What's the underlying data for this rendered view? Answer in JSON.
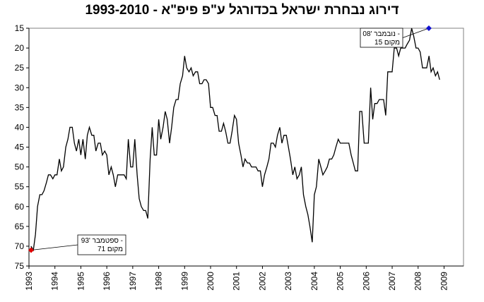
{
  "chart_data": {
    "type": "line",
    "title": "דירוג נבחרת ישראל בכדורגל ע\"פ פיפ\"א - 1993-2010",
    "xlabel": "",
    "ylabel": "",
    "y_inverted": true,
    "ylim": [
      15,
      75
    ],
    "y_ticks": [
      15,
      20,
      25,
      30,
      35,
      40,
      45,
      50,
      55,
      60,
      65,
      70,
      75
    ],
    "xlim": [
      1993.0,
      2009.75
    ],
    "x_tick_labels": [
      "1993",
      "1994",
      "1995",
      "1996",
      "1997",
      "1998",
      "1999",
      "2000",
      "2001",
      "2002",
      "2003",
      "2004",
      "2005",
      "2006",
      "2007",
      "2008",
      "2009"
    ],
    "grid": false,
    "legend": "none",
    "line_color": "#000000",
    "series": [
      {
        "points": [
          [
            1993.08,
            70
          ],
          [
            1993.17,
            71
          ],
          [
            1993.25,
            67
          ],
          [
            1993.33,
            60
          ],
          [
            1993.42,
            57
          ],
          [
            1993.5,
            57
          ],
          [
            1993.58,
            56
          ],
          [
            1993.67,
            54
          ],
          [
            1993.75,
            52
          ],
          [
            1993.83,
            52
          ],
          [
            1993.92,
            53
          ],
          [
            1994.0,
            52
          ],
          [
            1994.08,
            52
          ],
          [
            1994.17,
            48
          ],
          [
            1994.25,
            51
          ],
          [
            1994.33,
            50
          ],
          [
            1994.42,
            45
          ],
          [
            1994.5,
            43
          ],
          [
            1994.58,
            40
          ],
          [
            1994.67,
            40
          ],
          [
            1994.75,
            44
          ],
          [
            1994.83,
            46
          ],
          [
            1994.92,
            43
          ],
          [
            1995.0,
            47
          ],
          [
            1995.08,
            43
          ],
          [
            1995.17,
            48
          ],
          [
            1995.25,
            42
          ],
          [
            1995.33,
            40
          ],
          [
            1995.42,
            42
          ],
          [
            1995.5,
            42
          ],
          [
            1995.58,
            46
          ],
          [
            1995.67,
            44
          ],
          [
            1995.75,
            44
          ],
          [
            1995.83,
            47
          ],
          [
            1995.92,
            46
          ],
          [
            1996.0,
            47
          ],
          [
            1996.08,
            52
          ],
          [
            1996.17,
            50
          ],
          [
            1996.25,
            52
          ],
          [
            1996.33,
            55
          ],
          [
            1996.42,
            52
          ],
          [
            1996.5,
            52
          ],
          [
            1996.58,
            52
          ],
          [
            1996.67,
            52
          ],
          [
            1996.75,
            53
          ],
          [
            1996.83,
            43
          ],
          [
            1996.92,
            50
          ],
          [
            1997.0,
            50
          ],
          [
            1997.08,
            43
          ],
          [
            1997.17,
            52
          ],
          [
            1997.25,
            58
          ],
          [
            1997.33,
            60
          ],
          [
            1997.42,
            61
          ],
          [
            1997.5,
            61
          ],
          [
            1997.58,
            63
          ],
          [
            1997.67,
            48
          ],
          [
            1997.75,
            40
          ],
          [
            1997.83,
            47
          ],
          [
            1997.92,
            47
          ],
          [
            1998.0,
            38
          ],
          [
            1998.08,
            43
          ],
          [
            1998.17,
            40
          ],
          [
            1998.25,
            36
          ],
          [
            1998.33,
            38
          ],
          [
            1998.42,
            44
          ],
          [
            1998.5,
            40
          ],
          [
            1998.58,
            35
          ],
          [
            1998.67,
            33
          ],
          [
            1998.75,
            33
          ],
          [
            1998.83,
            29
          ],
          [
            1998.92,
            27
          ],
          [
            1999.0,
            22
          ],
          [
            1999.08,
            25
          ],
          [
            1999.17,
            26
          ],
          [
            1999.25,
            25
          ],
          [
            1999.33,
            27
          ],
          [
            1999.42,
            26
          ],
          [
            1999.5,
            26
          ],
          [
            1999.58,
            29
          ],
          [
            1999.67,
            29
          ],
          [
            1999.75,
            28
          ],
          [
            1999.83,
            28
          ],
          [
            1999.92,
            29
          ],
          [
            2000.0,
            35
          ],
          [
            2000.08,
            35
          ],
          [
            2000.17,
            37
          ],
          [
            2000.25,
            37
          ],
          [
            2000.33,
            41
          ],
          [
            2000.42,
            41
          ],
          [
            2000.5,
            39
          ],
          [
            2000.58,
            41
          ],
          [
            2000.67,
            44
          ],
          [
            2000.75,
            44
          ],
          [
            2000.83,
            41
          ],
          [
            2000.92,
            37
          ],
          [
            2001.0,
            38
          ],
          [
            2001.08,
            44
          ],
          [
            2001.17,
            47
          ],
          [
            2001.25,
            50
          ],
          [
            2001.33,
            48
          ],
          [
            2001.42,
            49
          ],
          [
            2001.5,
            49
          ],
          [
            2001.58,
            50
          ],
          [
            2001.67,
            50
          ],
          [
            2001.75,
            50
          ],
          [
            2001.83,
            51
          ],
          [
            2001.92,
            51
          ],
          [
            2002.0,
            55
          ],
          [
            2002.08,
            52
          ],
          [
            2002.17,
            50
          ],
          [
            2002.25,
            48
          ],
          [
            2002.33,
            44
          ],
          [
            2002.42,
            44
          ],
          [
            2002.5,
            45
          ],
          [
            2002.58,
            42
          ],
          [
            2002.67,
            40
          ],
          [
            2002.75,
            44
          ],
          [
            2002.83,
            42
          ],
          [
            2002.92,
            42
          ],
          [
            2003.0,
            45
          ],
          [
            2003.08,
            48
          ],
          [
            2003.17,
            52
          ],
          [
            2003.25,
            50
          ],
          [
            2003.33,
            53
          ],
          [
            2003.42,
            52
          ],
          [
            2003.5,
            50
          ],
          [
            2003.58,
            57
          ],
          [
            2003.67,
            60
          ],
          [
            2003.75,
            62
          ],
          [
            2003.83,
            65
          ],
          [
            2003.92,
            69
          ],
          [
            2004.0,
            57
          ],
          [
            2004.08,
            55
          ],
          [
            2004.17,
            48
          ],
          [
            2004.25,
            50
          ],
          [
            2004.33,
            52
          ],
          [
            2004.42,
            51
          ],
          [
            2004.5,
            50
          ],
          [
            2004.58,
            48
          ],
          [
            2004.67,
            48
          ],
          [
            2004.75,
            47
          ],
          [
            2004.83,
            45
          ],
          [
            2004.92,
            43
          ],
          [
            2005.0,
            44
          ],
          [
            2005.08,
            44
          ],
          [
            2005.17,
            44
          ],
          [
            2005.25,
            44
          ],
          [
            2005.33,
            44
          ],
          [
            2005.42,
            47
          ],
          [
            2005.5,
            49
          ],
          [
            2005.58,
            51
          ],
          [
            2005.67,
            51
          ],
          [
            2005.75,
            36
          ],
          [
            2005.83,
            36
          ],
          [
            2005.92,
            44
          ],
          [
            2006.0,
            44
          ],
          [
            2006.08,
            44
          ],
          [
            2006.17,
            30
          ],
          [
            2006.25,
            38
          ],
          [
            2006.33,
            34
          ],
          [
            2006.42,
            34
          ],
          [
            2006.5,
            33
          ],
          [
            2006.58,
            33
          ],
          [
            2006.67,
            33
          ],
          [
            2006.75,
            37
          ],
          [
            2006.83,
            26
          ],
          [
            2006.92,
            26
          ],
          [
            2007.0,
            26
          ],
          [
            2007.08,
            20
          ],
          [
            2007.17,
            20
          ],
          [
            2007.25,
            22
          ],
          [
            2007.33,
            20
          ],
          [
            2007.42,
            20
          ],
          [
            2007.5,
            20
          ],
          [
            2007.58,
            19
          ],
          [
            2007.67,
            18
          ],
          [
            2007.75,
            15
          ],
          [
            2007.83,
            17
          ],
          [
            2007.92,
            20
          ],
          [
            2008.0,
            20
          ],
          [
            2008.08,
            21
          ],
          [
            2008.17,
            25
          ],
          [
            2008.25,
            25
          ],
          [
            2008.33,
            25
          ],
          [
            2008.42,
            22
          ],
          [
            2008.5,
            26
          ],
          [
            2008.58,
            25
          ],
          [
            2008.67,
            27
          ],
          [
            2008.75,
            26
          ],
          [
            2008.83,
            28
          ]
        ]
      }
    ],
    "annotations": [
      {
        "line1": "ספטמבר '93 -",
        "line2": "מקום 71",
        "x": 1993.0,
        "y": 71,
        "marker_color": "#e00000"
      },
      {
        "line1": "נובמבר '08 -",
        "line2": "מקום 15",
        "x": 2008.25,
        "y": 15,
        "marker_color": "#1010d0"
      }
    ]
  }
}
